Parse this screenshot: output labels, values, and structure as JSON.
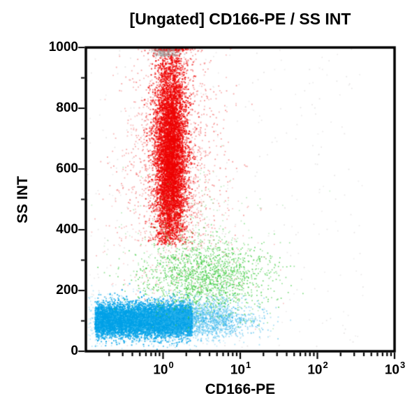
{
  "chart_data": {
    "type": "scatter",
    "title": "[Ungated] CD166-PE / SS INT",
    "xlabel": "CD166-PE",
    "ylabel": "SS INT",
    "x_scale": "log",
    "x_range_log10": [
      -1,
      3
    ],
    "x_major_tick_exponents": [
      0,
      1,
      2,
      3
    ],
    "x_tick_base": "10",
    "x_minor_tick_multiples": [
      2,
      3,
      4,
      5,
      6,
      7,
      8,
      9
    ],
    "y_scale": "linear",
    "y_range": [
      0,
      1000
    ],
    "y_major_ticks": [
      0,
      200,
      400,
      600,
      800,
      1000
    ],
    "y_minor_tick_step": 100,
    "grid": false,
    "legend": null,
    "background_color": "#ffffff",
    "axis_color": "#000000",
    "render_seed": 1234,
    "populations": [
      {
        "name": "debris-gray",
        "color": "#b3acac",
        "count": 330,
        "size": 1.6,
        "alpha": 0.4,
        "x": {
          "dist": "uniform",
          "a": -1.0,
          "b": 2.6
        },
        "y": {
          "dist": "uniform",
          "a": 10,
          "b": 995
        }
      },
      {
        "name": "granulocytes-red-halo",
        "color": "#f03030",
        "count": 1700,
        "size": 1.8,
        "alpha": 0.5,
        "x": {
          "dist": "gauss",
          "a": 0.12,
          "b": 0.32
        },
        "y": {
          "dist": "gauss",
          "a": 660,
          "b": 190
        },
        "y_clamp_max": 1000,
        "y_reject_below": 340
      },
      {
        "name": "granulocytes-red-core",
        "color": "#ee0404",
        "count": 6500,
        "size": 2,
        "alpha": 0.9,
        "x": {
          "dist": "gauss",
          "a": 0.1,
          "b": 0.105
        },
        "y": {
          "dist": "gauss",
          "a": 650,
          "b": 175
        },
        "y_clamp_max": 1000,
        "y_reject_below": 350
      },
      {
        "name": "granulocytes-red-sparse",
        "color": "#ee4444",
        "count": 260,
        "size": 1.6,
        "alpha": 0.45,
        "x": {
          "dist": "gauss",
          "a": 0.25,
          "b": 0.45
        },
        "y": {
          "dist": "gauss",
          "a": 320,
          "b": 95
        }
      },
      {
        "name": "lymphocytes-blue-core",
        "color": "#00a2e8",
        "count": 7500,
        "size": 2,
        "alpha": 0.95,
        "x": {
          "dist": "uniform",
          "a": -0.88,
          "b": 0.38
        },
        "y": {
          "dist": "gauss",
          "a": 103,
          "b": 27
        }
      },
      {
        "name": "lymphocytes-blue-fringe",
        "color": "#2ab2ec",
        "count": 1700,
        "size": 1.8,
        "alpha": 0.6,
        "x": {
          "dist": "gauss",
          "a": 0.45,
          "b": 0.38
        },
        "y": {
          "dist": "gauss",
          "a": 105,
          "b": 32
        },
        "x_reject_below": -0.9
      },
      {
        "name": "lymphocytes-blue-scatter",
        "color": "#58c6f2",
        "count": 900,
        "size": 1.6,
        "alpha": 0.5,
        "x": {
          "dist": "uniform",
          "a": -0.97,
          "b": 0.9
        },
        "y": {
          "dist": "gauss",
          "a": 105,
          "b": 48
        }
      },
      {
        "name": "monocytes-green-main",
        "color": "#2fc832",
        "count": 1500,
        "size": 1.7,
        "alpha": 0.75,
        "x": {
          "dist": "gauss",
          "a": 0.55,
          "b": 0.42
        },
        "y": {
          "dist": "gauss",
          "a": 245,
          "b": 58
        },
        "x_reject_below": -0.95
      },
      {
        "name": "monocytes-green-sparse",
        "color": "#58cc58",
        "count": 280,
        "size": 1.6,
        "alpha": 0.5,
        "x": {
          "dist": "gauss",
          "a": 0.35,
          "b": 0.5
        },
        "y": {
          "dist": "gauss",
          "a": 390,
          "b": 110
        }
      },
      {
        "name": "saturated-top-gray",
        "color": "#9aa09e",
        "count": 230,
        "size": 2,
        "alpha": 0.5,
        "x": {
          "dist": "gauss",
          "a": 0.05,
          "b": 0.09
        },
        "y": {
          "dist": "uniform",
          "a": 972,
          "b": 1000
        }
      }
    ]
  }
}
